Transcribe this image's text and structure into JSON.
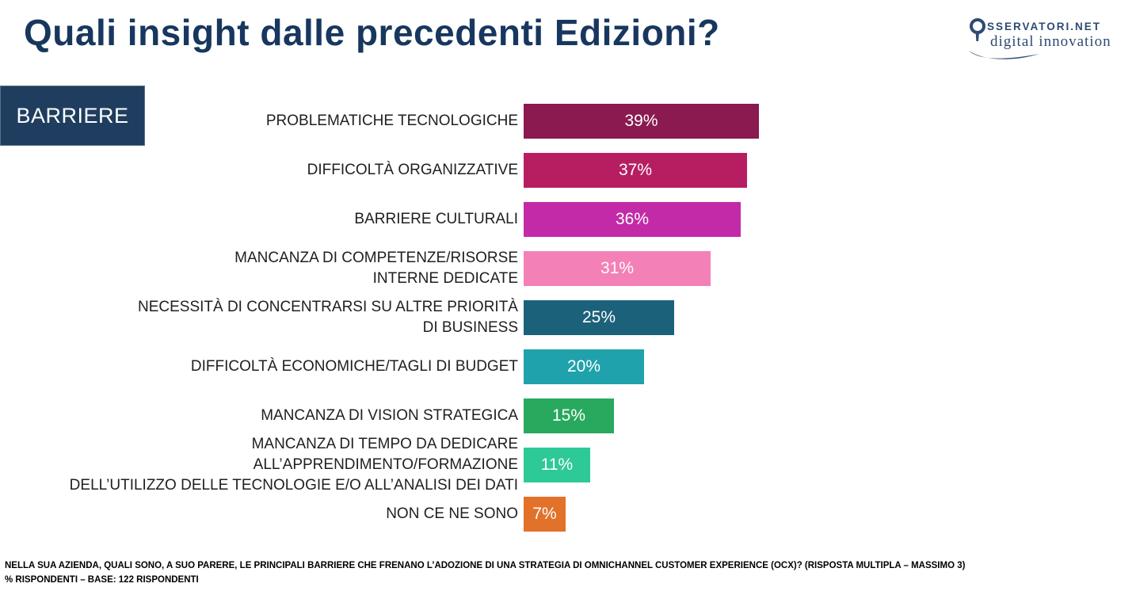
{
  "slide": {
    "title": "Quali insight dalle precedenti Edizioni?",
    "category_box": "BARRIERE"
  },
  "logo": {
    "text_top": "SSERVATORI.NET",
    "text_bottom": "digital innovation",
    "color": "#2E4A72"
  },
  "chart_data": {
    "type": "bar",
    "orientation": "horizontal",
    "title": "BARRIERE",
    "xlim": [
      0,
      40
    ],
    "grid": false,
    "legend": false,
    "value_suffix": "%",
    "categories": [
      "PROBLEMATICHE TECNOLOGICHE",
      "DIFFICOLTÀ ORGANIZZATIVE",
      "BARRIERE CULTURALI",
      "MANCANZA DI COMPETENZE/RISORSE INTERNE DEDICATE",
      "NECESSITÀ DI CONCENTRARSI SU ALTRE PRIORITÀ DI BUSINESS",
      "DIFFICOLTÀ ECONOMICHE/TAGLI DI BUDGET",
      "MANCANZA DI VISION STRATEGICA",
      "MANCANZA DI TEMPO DA DEDICARE ALL’APPRENDIMENTO/FORMAZIONE DELL’UTILIZZO DELLE TECNOLOGIE E/O ALL’ANALISI DEI DATI",
      "NON CE NE SONO"
    ],
    "label_lines": [
      [
        "PROBLEMATICHE TECNOLOGICHE"
      ],
      [
        "DIFFICOLTÀ ORGANIZZATIVE"
      ],
      [
        "BARRIERE CULTURALI"
      ],
      [
        "MANCANZA DI COMPETENZE/RISORSE",
        "INTERNE DEDICATE"
      ],
      [
        "NECESSITÀ DI CONCENTRARSI SU ALTRE PRIORITÀ",
        "DI BUSINESS"
      ],
      [
        "DIFFICOLTÀ ECONOMICHE/TAGLI DI BUDGET"
      ],
      [
        "MANCANZA DI VISION STRATEGICA"
      ],
      [
        "MANCANZA DI TEMPO DA DEDICARE ALL’APPRENDIMENTO/FORMAZIONE",
        "DELL’UTILIZZO DELLE TECNOLOGIE E/O ALL’ANALISI DEI DATI"
      ],
      [
        "NON CE NE SONO"
      ]
    ],
    "values": [
      39,
      37,
      36,
      31,
      25,
      20,
      15,
      11,
      7
    ],
    "value_labels": [
      "39%",
      "37%",
      "36%",
      "31%",
      "25%",
      "20%",
      "15%",
      "11%",
      "7%"
    ],
    "bar_colors": [
      "#8A1A4F",
      "#B71E62",
      "#C32AA8",
      "#F480B8",
      "#1C617A",
      "#1FA2AB",
      "#28A95D",
      "#2DC997",
      "#E2712A"
    ]
  },
  "footer": {
    "question": "NELLA SUA AZIENDA, QUALI SONO, A SUO PARERE, LE PRINCIPALI BARRIERE CHE FRENANO L’ADOZIONE DI UNA STRATEGIA DI OMNICHANNEL CUSTOMER EXPERIENCE (OCX)? (RISPOSTA MULTIPLA – MASSIMO 3)",
    "base": "% RISPONDENTI  – BASE: 122 RISPONDENTI"
  }
}
